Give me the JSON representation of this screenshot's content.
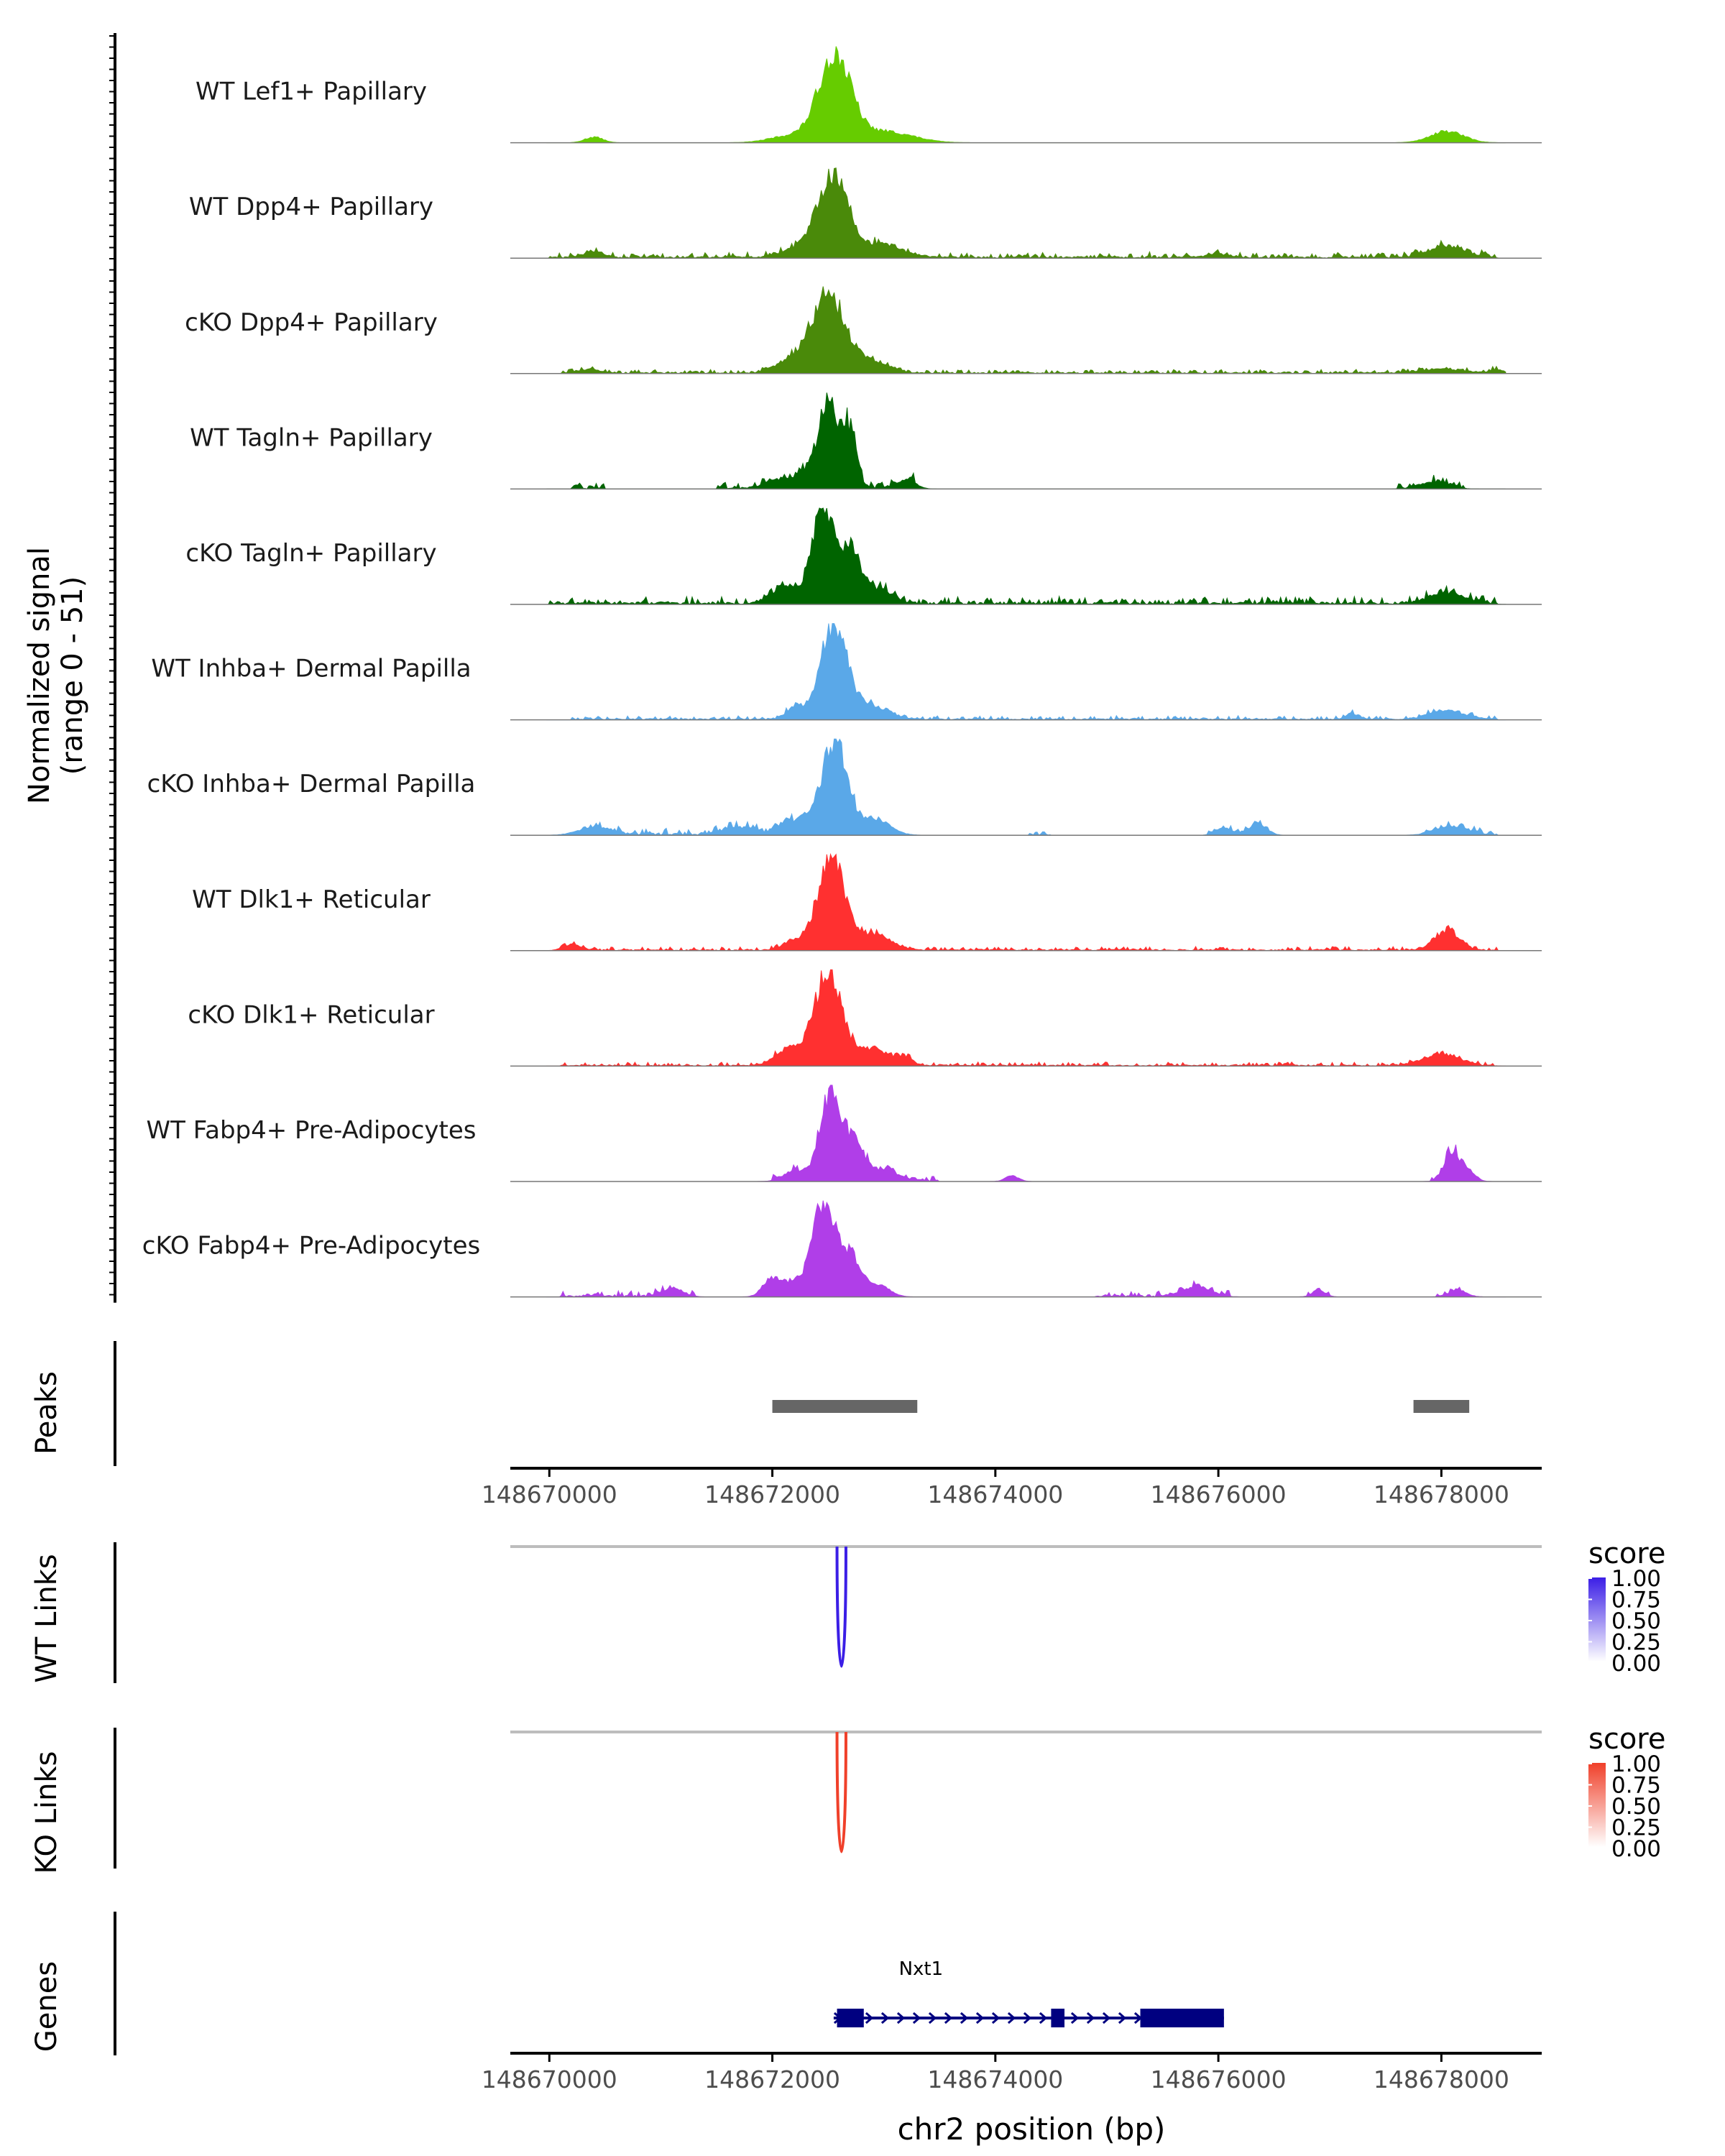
{
  "chart_data": {
    "type": "area",
    "title": "",
    "region": {
      "chrom": "chr2",
      "start": 148669650,
      "end": 148678900
    },
    "xlabel": "chr2 position (bp)",
    "x_ticks": [
      148670000,
      148672000,
      148674000,
      148676000,
      148678000
    ],
    "x_tick_labels": [
      "148670000",
      "148672000",
      "148674000",
      "148676000",
      "148678000"
    ],
    "coverage": {
      "ylabel_line1": "Normalized signal",
      "ylabel_line2": "(range 0 - 51)",
      "ylim": [
        0,
        51
      ],
      "tracks": [
        {
          "name": "WT Lef1+ Papillary",
          "color": "#66cc00",
          "peaks": [
            [
              148672560,
              46,
              140
            ],
            [
              148673000,
              6,
              250
            ],
            [
              148672200,
              4,
              200
            ],
            [
              148670400,
              3,
              80
            ],
            [
              148678050,
              6,
              150
            ]
          ],
          "noise": []
        },
        {
          "name": "WT Dpp4+ Papillary",
          "color": "#4a8a0a",
          "peaks": [
            [
              148672540,
              43,
              130
            ],
            [
              148672950,
              7,
              200
            ],
            [
              148672250,
              5,
              150
            ],
            [
              148670400,
              3,
              90
            ],
            [
              148678050,
              6,
              160
            ],
            [
              148676000,
              2,
              90
            ]
          ],
          "noise": [
            [
              148670000,
              148678500,
              3
            ]
          ]
        },
        {
          "name": "cKO Dpp4+ Papillary",
          "color": "#4a8a0a",
          "peaks": [
            [
              148672500,
              42,
              150
            ],
            [
              148672900,
              6,
              150
            ],
            [
              148672150,
              6,
              130
            ],
            [
              148670350,
              2,
              100
            ],
            [
              148678000,
              2,
              200
            ],
            [
              148678500,
              2,
              60
            ]
          ],
          "noise": [
            [
              148670100,
              148678500,
              2
            ]
          ]
        },
        {
          "name": "WT Tagln+ Papillary",
          "color": "#006400",
          "peaks": [
            [
              148672500,
              46,
              90
            ],
            [
              148672700,
              30,
              60
            ],
            [
              148672250,
              8,
              90
            ],
            [
              148672000,
              4,
              80
            ],
            [
              148673200,
              5,
              80
            ],
            [
              148677950,
              4,
              120
            ]
          ],
          "noise": [
            [
              148670200,
              148670500,
              3
            ],
            [
              148671500,
              148673300,
              4
            ],
            [
              148677600,
              148678200,
              3
            ]
          ]
        },
        {
          "name": "cKO Tagln+ Papillary",
          "color": "#006400",
          "peaks": [
            [
              148672450,
              50,
              100
            ],
            [
              148672700,
              28,
              90
            ],
            [
              148672100,
              8,
              120
            ],
            [
              148672950,
              8,
              120
            ],
            [
              148678050,
              6,
              160
            ]
          ],
          "noise": [
            [
              148670000,
              148678500,
              4
            ]
          ]
        },
        {
          "name": "WT Inhba+ Dermal Papilla",
          "color": "#5aa8e8",
          "peaks": [
            [
              148672550,
              50,
              120
            ],
            [
              148672200,
              6,
              80
            ],
            [
              148672900,
              7,
              150
            ],
            [
              148678050,
              5,
              150
            ],
            [
              148677200,
              3,
              60
            ]
          ],
          "noise": [
            [
              148670200,
              148678500,
              2
            ]
          ]
        },
        {
          "name": "cKO Inhba+ Dermal Papilla",
          "color": "#5aa8e8",
          "peaks": [
            [
              148672550,
              48,
              110
            ],
            [
              148672900,
              9,
              140
            ],
            [
              148672200,
              8,
              130
            ],
            [
              148670400,
              4,
              140
            ],
            [
              148671700,
              4,
              130
            ],
            [
              148676050,
              4,
              70
            ],
            [
              148676350,
              6,
              80
            ],
            [
              148678100,
              4,
              150
            ]
          ],
          "noise": [
            [
              148670300,
              148672800,
              4
            ],
            [
              148674300,
              148674500,
              3
            ],
            [
              148675900,
              148676500,
              2
            ],
            [
              148677800,
              148678500,
              3
            ]
          ]
        },
        {
          "name": "WT Dlk1+ Reticular",
          "color": "#ff3030",
          "peaks": [
            [
              148672530,
              49,
              120
            ],
            [
              148672900,
              8,
              160
            ],
            [
              148672200,
              5,
              100
            ],
            [
              148670200,
              3,
              80
            ],
            [
              148678050,
              10,
              110
            ]
          ],
          "noise": [
            [
              148670100,
              148678500,
              2
            ]
          ]
        },
        {
          "name": "cKO Dlk1+ Reticular",
          "color": "#ff3030",
          "peaks": [
            [
              148672500,
              50,
              120
            ],
            [
              148672900,
              9,
              160
            ],
            [
              148672150,
              9,
              120
            ],
            [
              148673200,
              4,
              60
            ],
            [
              148678000,
              6,
              160
            ]
          ],
          "noise": [
            [
              148670100,
              148678500,
              2
            ]
          ]
        },
        {
          "name": "WT Fabp4+ Pre-Adipocytes",
          "color": "#b03ee8",
          "peaks": [
            [
              148672530,
              48,
              100
            ],
            [
              148672750,
              18,
              70
            ],
            [
              148672200,
              5,
              100
            ],
            [
              148672980,
              6,
              140
            ],
            [
              148678100,
              16,
              70
            ],
            [
              148678250,
              5,
              60
            ],
            [
              148674150,
              3,
              60
            ]
          ],
          "noise": [
            [
              148672000,
              148673500,
              3
            ],
            [
              148677900,
              148678250,
              3
            ]
          ]
        },
        {
          "name": "cKO Fabp4+ Pre-Adipocytes",
          "color": "#b03ee8",
          "peaks": [
            [
              148672460,
              51,
              100
            ],
            [
              148672700,
              22,
              90
            ],
            [
              148672000,
              10,
              80
            ],
            [
              148672200,
              8,
              80
            ],
            [
              148672950,
              6,
              100
            ],
            [
              148671100,
              4,
              100
            ],
            [
              148675800,
              5,
              130
            ],
            [
              148676900,
              3,
              60
            ],
            [
              148678150,
              3,
              80
            ]
          ],
          "noise": [
            [
              148670100,
              148671300,
              3
            ],
            [
              148674900,
              148676100,
              3
            ],
            [
              148676800,
              148677000,
              2
            ],
            [
              148677950,
              148678250,
              2
            ]
          ]
        }
      ]
    },
    "peaks_track": {
      "label": "Peaks",
      "intervals": [
        [
          148672000,
          148673300
        ],
        [
          148677750,
          148678250
        ]
      ]
    },
    "links": [
      {
        "label": "WT Links",
        "color": "#3b1ee6",
        "anchor_start": 148672580,
        "anchor_end": 148672660,
        "score": 1.0,
        "legend_title": "score",
        "legend_labels": [
          "1.00",
          "0.75",
          "0.50",
          "0.25",
          "0.00"
        ]
      },
      {
        "label": "KO Links",
        "color": "#f0402a",
        "anchor_start": 148672580,
        "anchor_end": 148672660,
        "score": 0.9,
        "legend_title": "score",
        "legend_labels": [
          "1.00",
          "0.75",
          "0.50",
          "0.25",
          "0.00"
        ]
      }
    ],
    "genes": {
      "label": "Genes",
      "gene": "Nxt1",
      "strand": "+",
      "start": 148672550,
      "end": 148676050,
      "exons": [
        [
          148672580,
          148672820
        ],
        [
          148674500,
          148674620
        ],
        [
          148675300,
          148676050
        ]
      ]
    }
  }
}
